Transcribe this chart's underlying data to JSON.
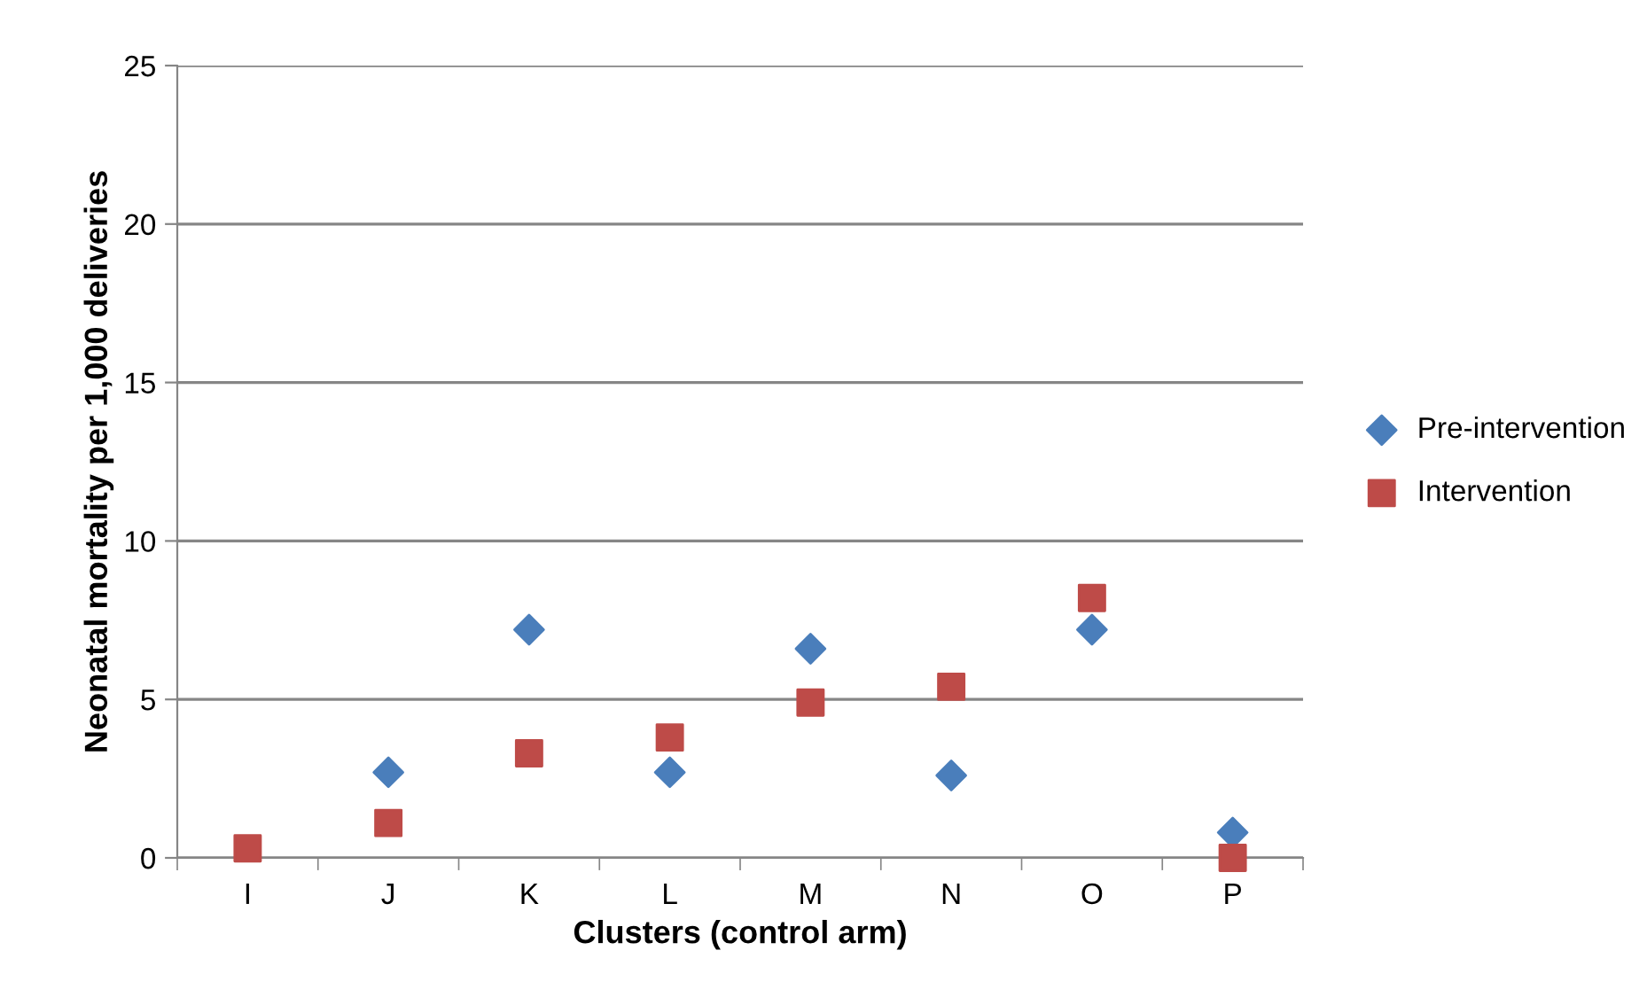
{
  "chart_data": {
    "type": "scatter",
    "xlabel": "Clusters (control arm)",
    "ylabel": "Neonatal mortality per 1,000 deliveries",
    "categories": [
      "I",
      "J",
      "K",
      "L",
      "M",
      "N",
      "O",
      "P"
    ],
    "series": [
      {
        "name": "Pre-intervention",
        "color": "#4a7ebb",
        "marker": "diamond",
        "values": [
          null,
          2.7,
          7.2,
          2.7,
          6.6,
          2.6,
          7.2,
          0.8
        ]
      },
      {
        "name": "Intervention",
        "color": "#be4b48",
        "marker": "square",
        "values": [
          0.3,
          1.1,
          3.3,
          3.8,
          4.9,
          5.4,
          8.2,
          0
        ]
      }
    ],
    "ylim": [
      0,
      25
    ],
    "yticks": [
      0,
      5,
      10,
      15,
      20,
      25
    ],
    "grid": "y",
    "legend": "right"
  }
}
